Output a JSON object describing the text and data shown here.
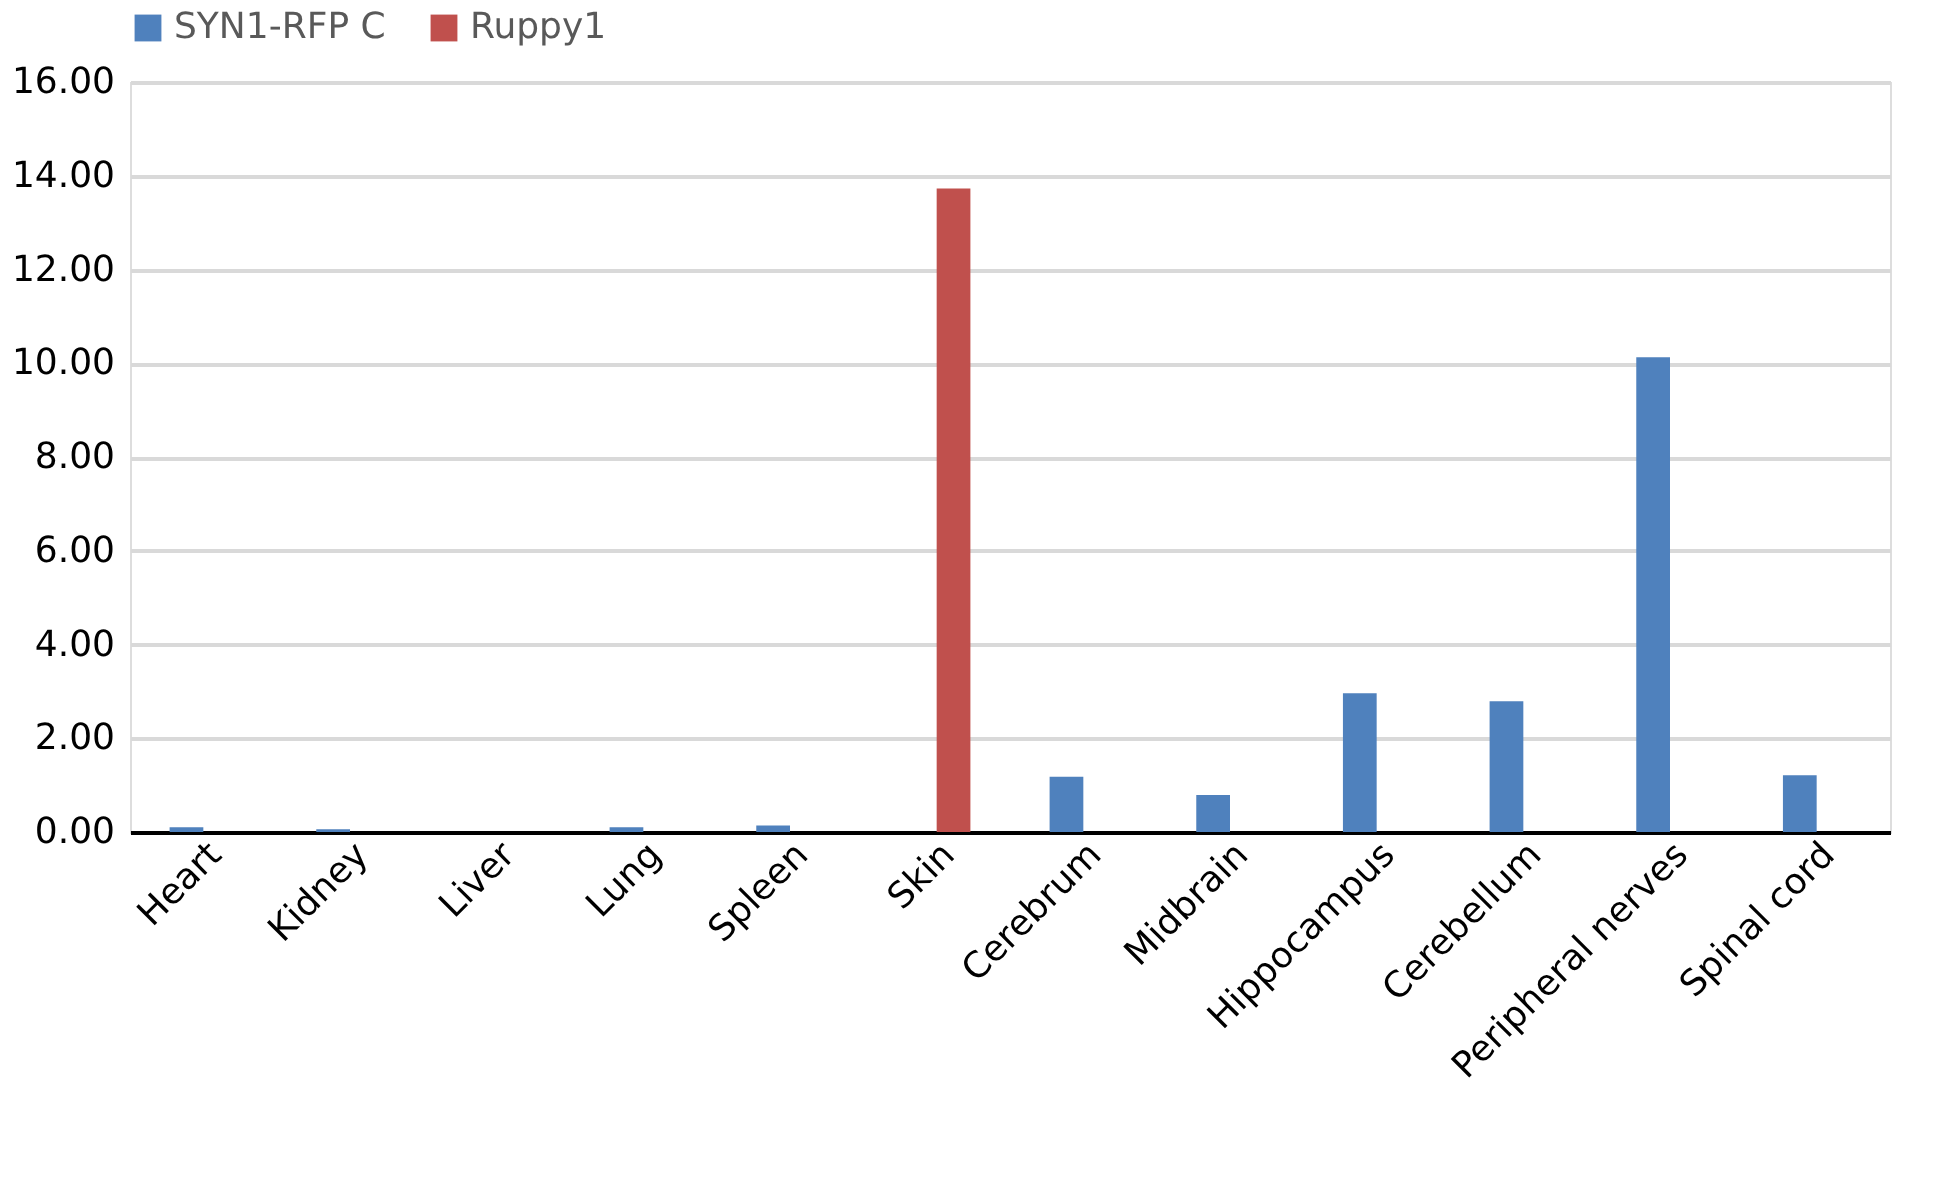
{
  "chart_data": {
    "type": "bar",
    "categories": [
      "Heart",
      "Kidney",
      "Liver",
      "Lung",
      "Spleen",
      "Skin",
      "Cerebrum",
      "Midbrain",
      "Hippocampus",
      "Cerebellum",
      "Peripheral nerves",
      "Spinal cord"
    ],
    "series": [
      {
        "name": "SYN1-RFP C",
        "color": "#4f81bd",
        "values": [
          0.1,
          0.06,
          0.0,
          0.1,
          0.14,
          null,
          1.18,
          0.79,
          2.96,
          2.79,
          10.13,
          1.21
        ]
      },
      {
        "name": "Ruppy1",
        "color": "#c0504d",
        "values": [
          null,
          null,
          null,
          null,
          null,
          13.73,
          null,
          null,
          null,
          null,
          null,
          null
        ]
      }
    ],
    "ylim": [
      0,
      16
    ],
    "yticks": [
      {
        "value": 0,
        "label": "0.00"
      },
      {
        "value": 2,
        "label": "2.00"
      },
      {
        "value": 4,
        "label": "4.00"
      },
      {
        "value": 6,
        "label": "6.00"
      },
      {
        "value": 8,
        "label": "8.00"
      },
      {
        "value": 10,
        "label": "10.00"
      },
      {
        "value": 12,
        "label": "12.00"
      },
      {
        "value": 14,
        "label": "14.00"
      },
      {
        "value": 16,
        "label": "16.00"
      }
    ],
    "grid": "y",
    "legend": "top"
  }
}
